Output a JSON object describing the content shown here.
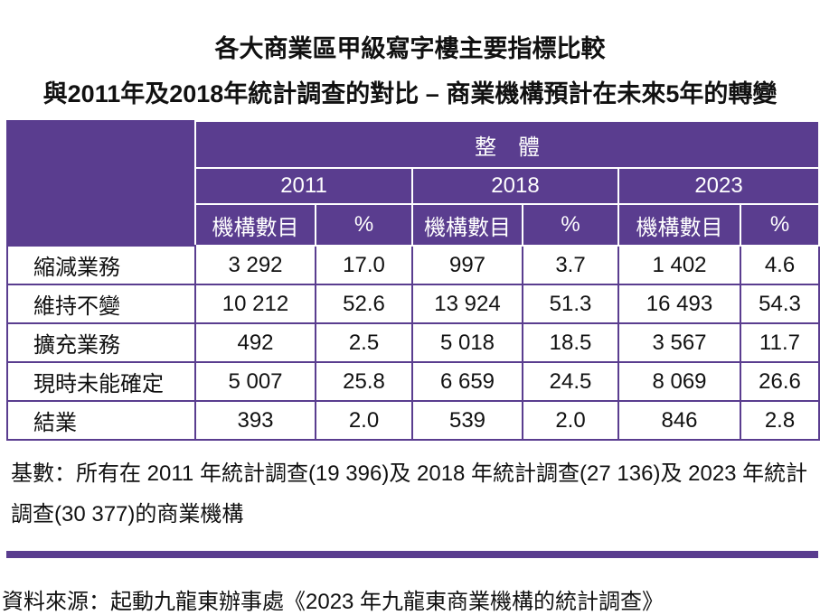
{
  "title": {
    "line1": "各大商業區甲級寫字樓主要指標比較",
    "line2": "與2011年及2018年統計調查的對比 – 商業機構預計在未來5年的轉變"
  },
  "table": {
    "group": "整　體",
    "years": [
      "2011",
      "2018",
      "2023"
    ],
    "subheaders": [
      "機構數目",
      "%"
    ],
    "rows": [
      {
        "label": "縮減業務",
        "values": [
          "3 292",
          "17.0",
          "997",
          "3.7",
          "1 402",
          "4.6"
        ]
      },
      {
        "label": "維持不變",
        "values": [
          "10 212",
          "52.6",
          "13 924",
          "51.3",
          "16 493",
          "54.3"
        ]
      },
      {
        "label": "擴充業務",
        "values": [
          "492",
          "2.5",
          "5 018",
          "18.5",
          "3 567",
          "11.7"
        ]
      },
      {
        "label": "現時未能確定",
        "values": [
          "5 007",
          "25.8",
          "6 659",
          "24.5",
          "8 069",
          "26.6"
        ]
      },
      {
        "label": "結業",
        "values": [
          "393",
          "2.0",
          "539",
          "2.0",
          "846",
          "2.8"
        ]
      }
    ]
  },
  "note": "基數：所有在 2011 年統計調查(19 396)及 2018 年統計調查(27 136)及 2023 年統計調查(30 377)的商業機構",
  "source": "資料來源：起動九龍東辦事處《2023 年九龍東商業機構的統計調查》"
}
